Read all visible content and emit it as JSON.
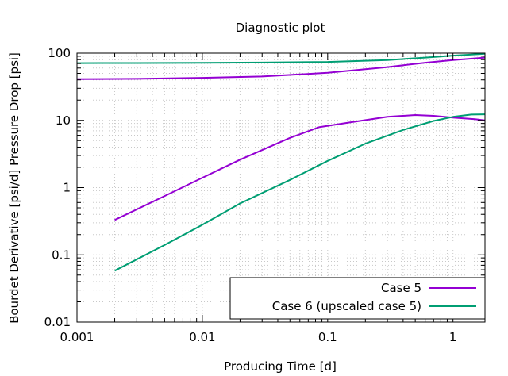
{
  "chart_data": {
    "type": "line",
    "title": "Diagnostic plot",
    "xlabel": "Producing Time [d]",
    "ylabel": "Bourdet Derivative [psi/d]   Pressure Drop [psi]",
    "xscale": "log",
    "yscale": "log",
    "xlim": [
      0.001,
      1.8
    ],
    "ylim": [
      0.01,
      100
    ],
    "grid": true,
    "legend_position": "bottom-right",
    "x_ticks": [
      0.001,
      0.01,
      0.1,
      1
    ],
    "x_tick_labels": [
      "0.001",
      "0.01",
      "0.1",
      "1"
    ],
    "y_ticks": [
      0.01,
      0.1,
      1,
      10,
      100
    ],
    "y_tick_labels": [
      "0.01",
      "0.1",
      "1",
      "10",
      "100"
    ],
    "series": [
      {
        "name": "Case 5",
        "color": "#9400d3",
        "points": [
          [
            0.001,
            41
          ],
          [
            0.003,
            41.5
          ],
          [
            0.01,
            43
          ],
          [
            0.03,
            45
          ],
          [
            0.1,
            51
          ],
          [
            0.3,
            62
          ],
          [
            0.6,
            72
          ],
          [
            1,
            79
          ],
          [
            1.8,
            86
          ]
        ]
      },
      {
        "name": "",
        "color": "#9400d3",
        "points": [
          [
            0.002,
            0.33
          ],
          [
            0.005,
            0.75
          ],
          [
            0.01,
            1.4
          ],
          [
            0.02,
            2.6
          ],
          [
            0.05,
            5.5
          ],
          [
            0.085,
            7.9
          ],
          [
            0.15,
            9.3
          ],
          [
            0.3,
            11.3
          ],
          [
            0.5,
            12.0
          ],
          [
            0.7,
            11.7
          ],
          [
            1.0,
            11.0
          ],
          [
            1.5,
            10.4
          ],
          [
            1.8,
            10.0
          ]
        ]
      },
      {
        "name": "Case 6 (upscaled case 5)",
        "color": "#009e73",
        "points": [
          [
            0.001,
            71
          ],
          [
            0.003,
            71.3
          ],
          [
            0.01,
            71.6
          ],
          [
            0.03,
            72.3
          ],
          [
            0.1,
            74
          ],
          [
            0.3,
            79
          ],
          [
            0.6,
            86
          ],
          [
            1,
            92
          ],
          [
            1.8,
            98
          ]
        ]
      },
      {
        "name": "",
        "color": "#009e73",
        "points": [
          [
            0.002,
            0.058
          ],
          [
            0.005,
            0.14
          ],
          [
            0.01,
            0.28
          ],
          [
            0.02,
            0.58
          ],
          [
            0.05,
            1.3
          ],
          [
            0.1,
            2.5
          ],
          [
            0.2,
            4.5
          ],
          [
            0.4,
            7.2
          ],
          [
            0.7,
            9.8
          ],
          [
            1.0,
            11.3
          ],
          [
            1.4,
            12.2
          ],
          [
            1.8,
            12.3
          ]
        ]
      }
    ]
  }
}
